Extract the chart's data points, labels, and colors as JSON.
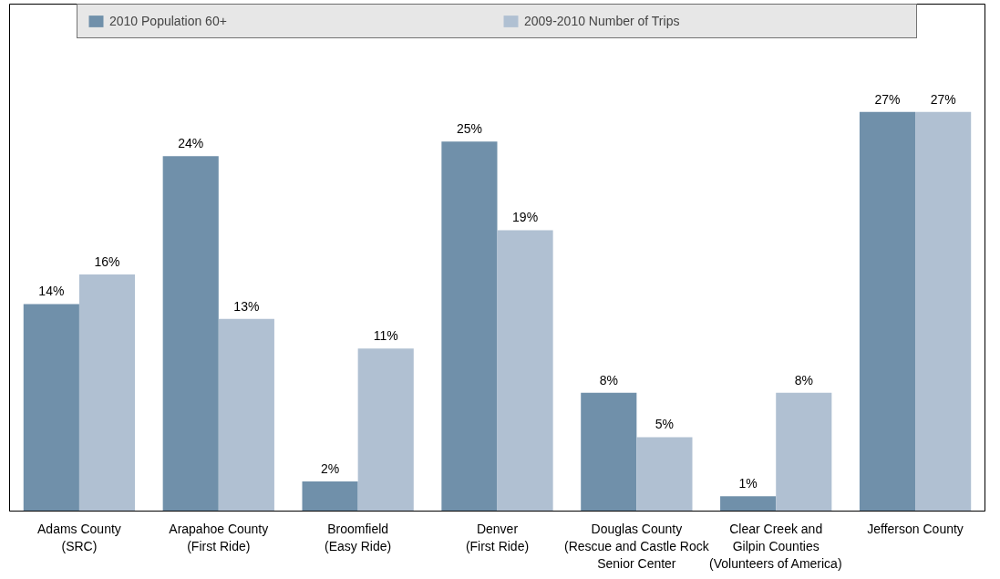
{
  "chart_data": {
    "type": "bar",
    "categories": [
      "Adams County\n(SRC)",
      "Arapahoe County\n(First Ride)",
      "Broomfield\n(Easy Ride)",
      "Denver\n(First Ride)",
      "Douglas County\n(Rescue and Castle Rock\nSenior Center",
      "Clear Creek and\nGilpin Counties\n(Volunteers of America)",
      "Jefferson County"
    ],
    "series": [
      {
        "name": "2010 Population 60+",
        "color": "#7090aa",
        "values": [
          14,
          24,
          2,
          25,
          8,
          1,
          27
        ],
        "value_labels": [
          "14%",
          "24%",
          "2%",
          "25%",
          "8%",
          "1%",
          "27%"
        ]
      },
      {
        "name": "2009-2010 Number of Trips",
        "color": "#b0c0d2",
        "values": [
          16,
          13,
          11,
          19,
          5,
          8,
          27
        ],
        "value_labels": [
          "16%",
          "13%",
          "11%",
          "19%",
          "5%",
          "8%",
          "27%"
        ]
      }
    ],
    "legend": "top"
  }
}
